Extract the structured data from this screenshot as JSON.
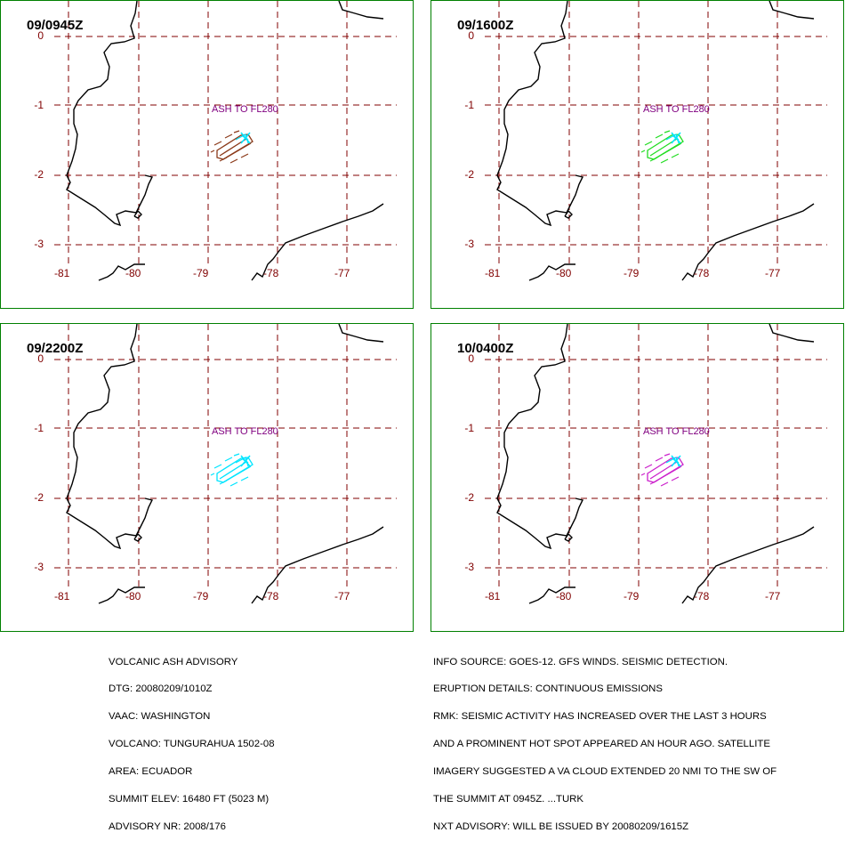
{
  "colors": {
    "panel_border": "#008000",
    "grid": "#800000",
    "label": "#800000",
    "coast": "#000000",
    "ash_label": "#800080",
    "cyan": "#00e5ff",
    "obs_brown": "#8b3a1a",
    "fcst_green": "#22dd22",
    "fcst_cyan": "#00e5ff",
    "fcst_magenta": "#cc22cc"
  },
  "panels": [
    {
      "title": "09/0945Z",
      "ash_label": "ASH TO FL280",
      "ash_color": "#8b3a1a"
    },
    {
      "title": "09/1600Z",
      "ash_label": "ASH TO FL280",
      "ash_color": "#22dd22"
    },
    {
      "title": "09/2200Z",
      "ash_label": "ASH TO FL280",
      "ash_color": "#00e5ff"
    },
    {
      "title": "10/0400Z",
      "ash_label": "ASH TO FL280",
      "ash_color": "#cc22cc"
    }
  ],
  "map": {
    "lat_labels": [
      "0",
      "-1",
      "-2",
      "-3"
    ],
    "lon_labels": [
      "-81",
      "-80",
      "-79",
      "-78",
      "-77"
    ]
  },
  "advisory_left": [
    "VOLCANIC ASH ADVISORY",
    "DTG: 20080209/1010Z",
    "VAAC: WASHINGTON",
    "VOLCANO: TUNGURAHUA 1502-08",
    "AREA: ECUADOR",
    "SUMMIT ELEV: 16480 FT (5023 M)",
    "ADVISORY NR: 2008/176"
  ],
  "advisory_right": [
    "INFO SOURCE: GOES-12. GFS WINDS. SEISMIC DETECTION.",
    "ERUPTION DETAILS: CONTINUOUS EMISSIONS",
    "RMK: SEISMIC ACTIVITY HAS INCREASED OVER THE LAST 3 HOURS",
    "AND A PROMINENT HOT SPOT APPEARED AN HOUR AGO. SATELLITE",
    "IMAGERY SUGGESTED A VA CLOUD EXTENDED 20 NMI TO THE SW OF",
    "THE SUMMIT AT 0945Z. ...TURK",
    "NXT ADVISORY: WILL BE ISSUED BY 20080209/1615Z"
  ]
}
